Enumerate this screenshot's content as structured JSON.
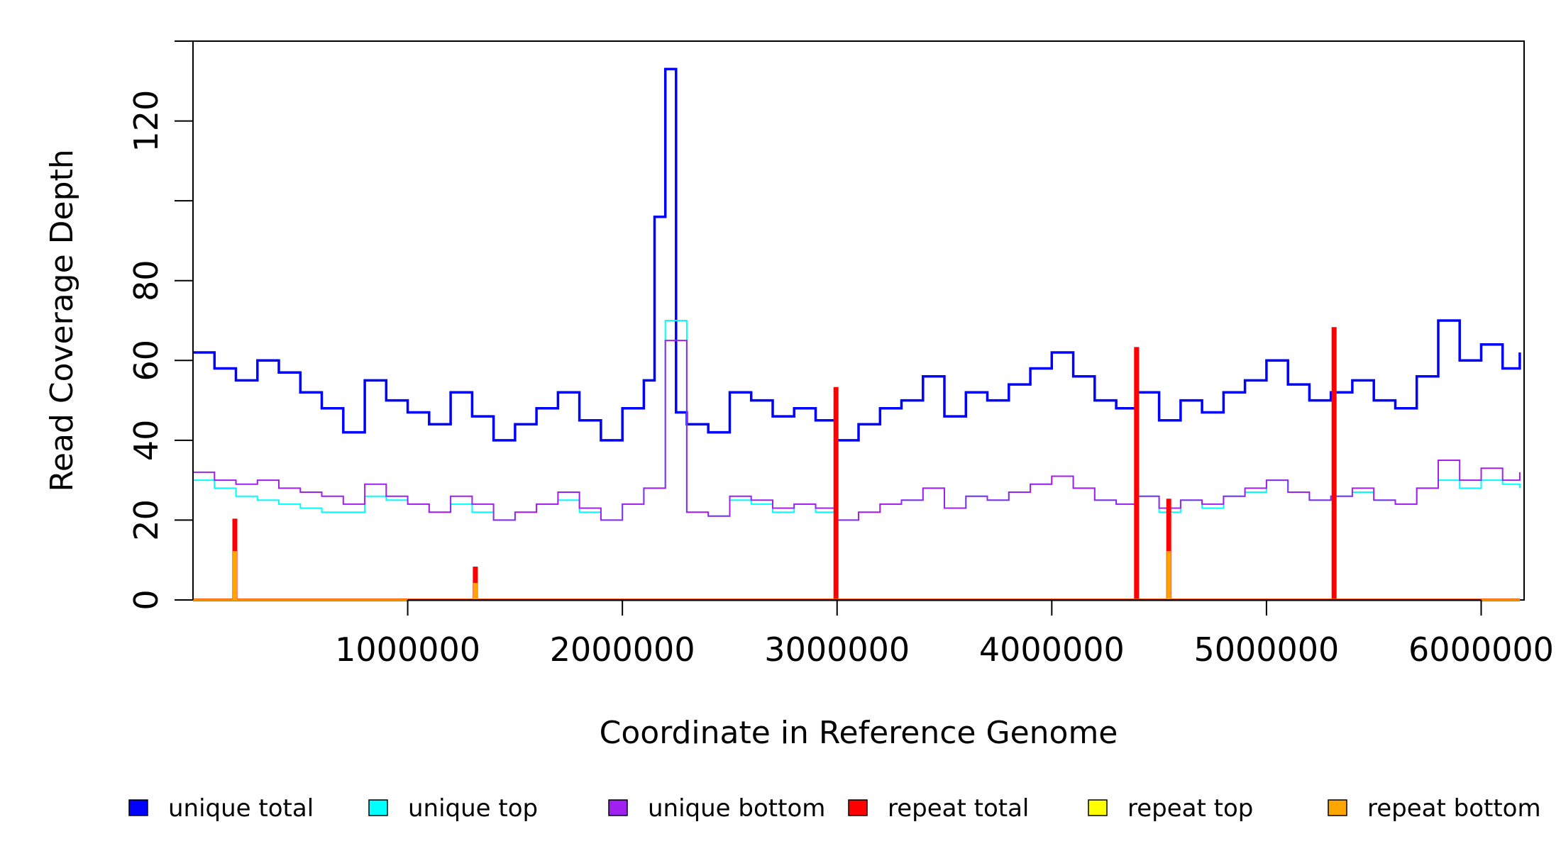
{
  "chart_data": {
    "type": "line",
    "title": "",
    "xlabel": "Coordinate in Reference Genome",
    "ylabel": "Read Coverage Depth",
    "xlim": [
      0,
      6200000
    ],
    "ylim": [
      0,
      140
    ],
    "x_ticks": [
      1000000,
      2000000,
      3000000,
      4000000,
      5000000,
      6000000
    ],
    "x_tick_labels": [
      "1000000",
      "2000000",
      "3000000",
      "4000000",
      "5000000",
      "6000000"
    ],
    "y_ticks": [
      0,
      20,
      40,
      60,
      80,
      100,
      120,
      140
    ],
    "y_tick_labels": [
      "0",
      "20",
      "40",
      "60",
      "80",
      "",
      "120",
      ""
    ],
    "grid": false,
    "legend_position": "bottom",
    "series": [
      {
        "name": "unique total",
        "color": "#0000ff",
        "x": [
          0,
          100000,
          200000,
          300000,
          400000,
          500000,
          600000,
          700000,
          800000,
          900000,
          1000000,
          1100000,
          1200000,
          1300000,
          1400000,
          1500000,
          1600000,
          1700000,
          1800000,
          1900000,
          2000000,
          2100000,
          2150000,
          2200000,
          2250000,
          2300000,
          2400000,
          2500000,
          2600000,
          2700000,
          2800000,
          2900000,
          3000000,
          3100000,
          3200000,
          3300000,
          3400000,
          3500000,
          3600000,
          3700000,
          3800000,
          3900000,
          4000000,
          4100000,
          4200000,
          4300000,
          4400000,
          4500000,
          4600000,
          4700000,
          4800000,
          4900000,
          5000000,
          5100000,
          5200000,
          5300000,
          5400000,
          5500000,
          5600000,
          5700000,
          5800000,
          5900000,
          6000000,
          6100000,
          6180000
        ],
        "y": [
          62,
          58,
          55,
          60,
          57,
          52,
          48,
          42,
          55,
          50,
          47,
          44,
          52,
          46,
          40,
          44,
          48,
          52,
          45,
          40,
          48,
          55,
          96,
          133,
          47,
          44,
          42,
          52,
          50,
          46,
          48,
          45,
          40,
          44,
          48,
          50,
          56,
          46,
          52,
          50,
          54,
          58,
          62,
          56,
          50,
          48,
          52,
          45,
          50,
          47,
          52,
          55,
          60,
          54,
          50,
          52,
          55,
          50,
          48,
          56,
          70,
          60,
          64,
          58,
          62
        ]
      },
      {
        "name": "unique top",
        "color": "#00ffff",
        "x": [
          0,
          100000,
          200000,
          300000,
          400000,
          500000,
          600000,
          700000,
          800000,
          900000,
          1000000,
          1100000,
          1200000,
          1300000,
          1400000,
          1500000,
          1600000,
          1700000,
          1800000,
          1900000,
          2000000,
          2100000,
          2200000,
          2300000,
          2400000,
          2500000,
          2600000,
          2700000,
          2800000,
          2900000,
          3000000,
          3100000,
          3200000,
          3300000,
          3400000,
          3500000,
          3600000,
          3700000,
          3800000,
          3900000,
          4000000,
          4100000,
          4200000,
          4300000,
          4400000,
          4500000,
          4600000,
          4700000,
          4800000,
          4900000,
          5000000,
          5100000,
          5200000,
          5300000,
          5400000,
          5500000,
          5600000,
          5700000,
          5800000,
          5900000,
          6000000,
          6100000,
          6180000
        ],
        "y": [
          30,
          28,
          26,
          25,
          24,
          23,
          22,
          22,
          26,
          25,
          24,
          22,
          24,
          22,
          20,
          22,
          24,
          25,
          22,
          20,
          24,
          28,
          70,
          22,
          21,
          25,
          24,
          22,
          24,
          22,
          20,
          22,
          24,
          25,
          28,
          23,
          26,
          25,
          27,
          29,
          31,
          28,
          25,
          24,
          26,
          22,
          25,
          23,
          26,
          27,
          30,
          27,
          25,
          26,
          27,
          25,
          24,
          28,
          30,
          28,
          30,
          29,
          28
        ]
      },
      {
        "name": "unique bottom",
        "color": "#a020f0",
        "x": [
          0,
          100000,
          200000,
          300000,
          400000,
          500000,
          600000,
          700000,
          800000,
          900000,
          1000000,
          1100000,
          1200000,
          1300000,
          1400000,
          1500000,
          1600000,
          1700000,
          1800000,
          1900000,
          2000000,
          2100000,
          2200000,
          2300000,
          2400000,
          2500000,
          2600000,
          2700000,
          2800000,
          2900000,
          3000000,
          3100000,
          3200000,
          3300000,
          3400000,
          3500000,
          3600000,
          3700000,
          3800000,
          3900000,
          4000000,
          4100000,
          4200000,
          4300000,
          4400000,
          4500000,
          4600000,
          4700000,
          4800000,
          4900000,
          5000000,
          5100000,
          5200000,
          5300000,
          5400000,
          5500000,
          5600000,
          5700000,
          5800000,
          5900000,
          6000000,
          6100000,
          6180000
        ],
        "y": [
          32,
          30,
          29,
          30,
          28,
          27,
          26,
          24,
          29,
          26,
          24,
          22,
          26,
          24,
          20,
          22,
          24,
          27,
          23,
          20,
          24,
          28,
          65,
          22,
          21,
          26,
          25,
          23,
          24,
          23,
          20,
          22,
          24,
          25,
          28,
          23,
          26,
          25,
          27,
          29,
          31,
          28,
          25,
          24,
          26,
          23,
          25,
          24,
          26,
          28,
          30,
          27,
          25,
          26,
          28,
          25,
          24,
          28,
          35,
          30,
          33,
          30,
          32
        ]
      },
      {
        "name": "repeat total",
        "color": "#ff0000",
        "x": [
          0,
          180000,
          190000,
          200000,
          1300000,
          1310000,
          1320000,
          2980000,
          2990000,
          3000000,
          4380000,
          4390000,
          4400000,
          4530000,
          4540000,
          4550000,
          5300000,
          5310000,
          5320000,
          6180000
        ],
        "y": [
          0,
          0,
          20,
          0,
          0,
          8,
          0,
          0,
          53,
          0,
          0,
          63,
          0,
          0,
          25,
          0,
          0,
          68,
          0,
          0
        ]
      },
      {
        "name": "repeat top",
        "color": "#ffff00",
        "x": [
          0,
          6180000
        ],
        "y": [
          0,
          0
        ]
      },
      {
        "name": "repeat bottom",
        "color": "#ffa500",
        "x": [
          0,
          180000,
          190000,
          200000,
          1300000,
          1310000,
          1320000,
          4530000,
          4540000,
          4550000,
          6180000
        ],
        "y": [
          0,
          0,
          12,
          0,
          0,
          4,
          0,
          0,
          12,
          0,
          0
        ]
      }
    ]
  }
}
